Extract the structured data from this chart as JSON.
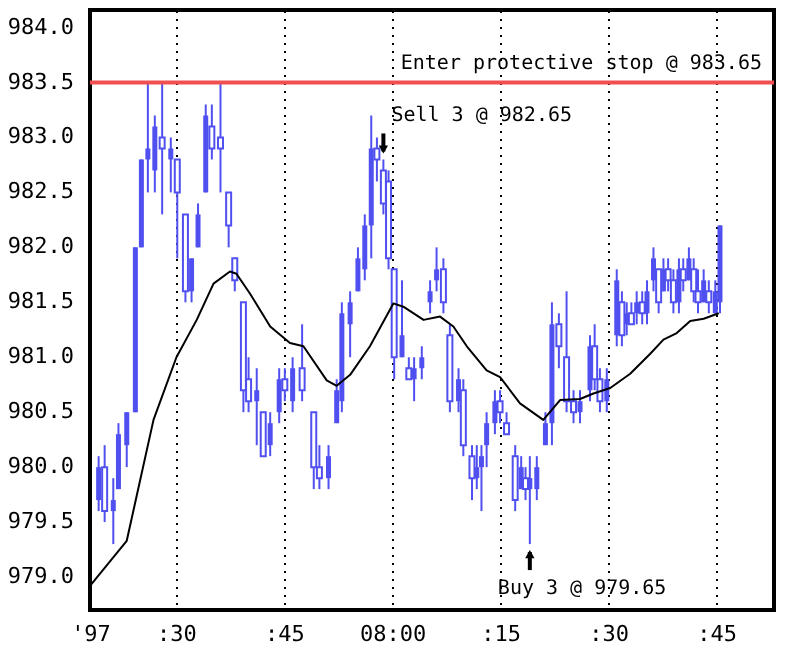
{
  "chart_data": {
    "type": "candlestick",
    "x": [
      "1997-01-01T07:19:16",
      "1997-01-01T07:20:06",
      "1997-01-01T07:21:18",
      "1997-01-01T07:22:01",
      "1997-01-01T07:23:10",
      "1997-01-01T07:24:22",
      "1997-01-01T07:25:12",
      "1997-01-01T07:26:06",
      "1997-01-01T07:27:04",
      "1997-01-01T07:28:05",
      "1997-01-01T07:29:17",
      "1997-01-01T07:30:11",
      "1997-01-01T07:31:19",
      "1997-01-01T07:32:10",
      "1997-01-01T07:33:04",
      "1997-01-01T07:34:08",
      "1997-01-01T07:34:59",
      "1997-01-01T07:36:11",
      "1997-01-01T07:37:19",
      "1997-01-01T07:38:10",
      "1997-01-01T07:39:22",
      "1997-01-01T07:40:05",
      "1997-01-01T07:41:13",
      "1997-01-01T07:42:07",
      "1997-01-01T07:43:05",
      "1997-01-01T07:44:20",
      "1997-01-01T07:45:07",
      "1997-01-01T07:46:12",
      "1997-01-01T07:47:31",
      "1997-01-01T07:49:08",
      "1997-01-01T07:49:55",
      "1997-01-01T07:51:11",
      "1997-01-01T07:52:19",
      "1997-01-01T07:53:02",
      "1997-01-01T07:54:11",
      "1997-01-01T07:55:16",
      "1997-01-01T07:56:13",
      "1997-01-01T07:57:07",
      "1997-01-01T07:57:54",
      "1997-01-01T07:58:48",
      "1997-01-01T07:59:31",
      "1997-01-01T08:00:18",
      "1997-01-01T08:01:23",
      "1997-01-01T08:02:20",
      "1997-01-01T08:03:04",
      "1997-01-01T08:04:08",
      "1997-01-01T08:05:17",
      "1997-01-01T08:06:11",
      "1997-01-01T08:07:08",
      "1997-01-01T08:08:02",
      "1997-01-01T08:09:14",
      "1997-01-01T08:09:54",
      "1997-01-01T08:11:06",
      "1997-01-01T08:11:46",
      "1997-01-01T08:12:25",
      "1997-01-01T08:13:08",
      "1997-01-01T08:14:17",
      "1997-01-01T08:15:00",
      "1997-01-01T08:15:54",
      "1997-01-01T08:17:06",
      "1997-01-01T08:17:56",
      "1997-01-01T08:18:32",
      "1997-01-01T08:19:08",
      "1997-01-01T08:20:06",
      "1997-01-01T08:21:18",
      "1997-01-01T08:22:12",
      "1997-01-01T08:23:10",
      "1997-01-01T08:24:14",
      "1997-01-01T08:25:12",
      "1997-01-01T08:26:06",
      "1997-01-01T08:27:29",
      "1997-01-01T08:28:08",
      "1997-01-01T08:28:52",
      "1997-01-01T08:29:49",
      "1997-01-01T08:31:12",
      "1997-01-01T08:31:55",
      "1997-01-01T08:32:35",
      "1997-01-01T08:33:14",
      "1997-01-01T08:33:58",
      "1997-01-01T08:34:44",
      "1997-01-01T08:35:24",
      "1997-01-01T08:36:18",
      "1997-01-01T08:37:01",
      "1997-01-01T08:37:41",
      "1997-01-01T08:38:20",
      "1997-01-01T08:39:04",
      "1997-01-01T08:39:50",
      "1997-01-01T08:40:26",
      "1997-01-01T08:41:13",
      "1997-01-01T08:41:53",
      "1997-01-01T08:42:29",
      "1997-01-01T08:43:16",
      "1997-01-01T08:43:59",
      "1997-01-01T08:44:53",
      "1997-01-01T08:45:32"
    ],
    "ohlc": [
      [
        979.7,
        980.1,
        979.6,
        980.0
      ],
      [
        980.0,
        980.2,
        979.5,
        979.6
      ],
      [
        979.6,
        979.9,
        979.3,
        979.7
      ],
      [
        979.8,
        980.4,
        979.8,
        980.3
      ],
      [
        980.2,
        980.5,
        980.0,
        980.5
      ],
      [
        980.5,
        982.0,
        980.5,
        982.0
      ],
      [
        982.0,
        982.8,
        982.0,
        982.8
      ],
      [
        982.8,
        983.5,
        982.5,
        982.9
      ],
      [
        982.7,
        983.2,
        982.5,
        983.1
      ],
      [
        983.0,
        983.5,
        982.3,
        982.9
      ],
      [
        982.8,
        983.0,
        982.5,
        982.9
      ],
      [
        982.8,
        982.8,
        981.9,
        982.5
      ],
      [
        982.3,
        982.3,
        981.5,
        981.6
      ],
      [
        981.6,
        981.9,
        981.5,
        981.9
      ],
      [
        982.0,
        982.4,
        982.0,
        982.3
      ],
      [
        982.5,
        983.3,
        982.5,
        983.2
      ],
      [
        983.1,
        983.3,
        982.8,
        982.9
      ],
      [
        983.0,
        983.5,
        982.5,
        982.9
      ],
      [
        982.5,
        982.5,
        982.0,
        982.2
      ],
      [
        981.9,
        981.9,
        981.6,
        981.7
      ],
      [
        981.5,
        981.5,
        980.5,
        980.7
      ],
      [
        980.8,
        981.0,
        980.5,
        980.6
      ],
      [
        980.6,
        980.9,
        980.2,
        980.7
      ],
      [
        980.5,
        980.5,
        980.1,
        980.1
      ],
      [
        980.2,
        980.5,
        980.1,
        980.4
      ],
      [
        980.5,
        980.9,
        980.4,
        980.8
      ],
      [
        980.8,
        980.9,
        980.6,
        980.7
      ],
      [
        980.6,
        981.0,
        980.5,
        980.9
      ],
      [
        980.9,
        981.3,
        980.6,
        980.7
      ],
      [
        980.5,
        980.5,
        979.8,
        980.0
      ],
      [
        980.0,
        980.2,
        979.8,
        979.9
      ],
      [
        979.9,
        980.2,
        979.8,
        980.1
      ],
      [
        980.4,
        980.8,
        980.4,
        980.7
      ],
      [
        980.6,
        981.5,
        980.5,
        981.4
      ],
      [
        981.3,
        981.6,
        981.0,
        981.5
      ],
      [
        981.6,
        982.0,
        981.6,
        981.9
      ],
      [
        981.8,
        982.3,
        981.7,
        982.2
      ],
      [
        982.2,
        983.2,
        981.9,
        982.9
      ],
      [
        982.9,
        983.0,
        982.6,
        982.8
      ],
      [
        982.7,
        982.8,
        982.3,
        982.4
      ],
      [
        982.6,
        982.7,
        981.8,
        981.9
      ],
      [
        981.8,
        981.8,
        980.8,
        981.0
      ],
      [
        981.0,
        981.7,
        981.0,
        981.2
      ],
      [
        980.9,
        981.0,
        980.8,
        980.8
      ],
      [
        980.8,
        981.0,
        980.6,
        980.9
      ],
      [
        980.9,
        981.1,
        980.8,
        981.0
      ],
      [
        981.5,
        981.7,
        981.4,
        981.6
      ],
      [
        981.7,
        982.0,
        981.6,
        981.8
      ],
      [
        981.8,
        981.9,
        981.4,
        981.5
      ],
      [
        981.2,
        981.3,
        980.5,
        980.6
      ],
      [
        980.6,
        980.9,
        980.5,
        980.8
      ],
      [
        980.7,
        980.8,
        980.1,
        980.2
      ],
      [
        980.1,
        980.2,
        979.7,
        979.9
      ],
      [
        979.9,
        980.2,
        979.8,
        980.0
      ],
      [
        980.0,
        980.2,
        979.6,
        980.1
      ],
      [
        980.2,
        980.5,
        980.0,
        980.4
      ],
      [
        980.4,
        980.7,
        980.3,
        980.6
      ],
      [
        980.6,
        980.7,
        980.4,
        980.5
      ],
      [
        980.4,
        980.5,
        980.3,
        980.3
      ],
      [
        980.1,
        980.2,
        979.6,
        979.7
      ],
      [
        979.8,
        980.1,
        979.8,
        980.0
      ],
      [
        979.9,
        980.0,
        979.7,
        979.8
      ],
      [
        979.8,
        980.1,
        979.3,
        979.9
      ],
      [
        979.8,
        980.1,
        979.7,
        980.0
      ],
      [
        980.2,
        980.5,
        980.2,
        980.4
      ],
      [
        980.4,
        981.5,
        980.2,
        981.3
      ],
      [
        981.3,
        981.4,
        980.9,
        981.1
      ],
      [
        981.0,
        981.6,
        980.5,
        980.6
      ],
      [
        980.6,
        980.7,
        980.4,
        980.5
      ],
      [
        980.5,
        980.7,
        980.4,
        980.6
      ],
      [
        980.7,
        981.2,
        980.6,
        981.1
      ],
      [
        981.1,
        981.3,
        980.7,
        980.8
      ],
      [
        980.8,
        980.9,
        980.5,
        980.6
      ],
      [
        980.6,
        980.9,
        980.5,
        980.8
      ],
      [
        981.2,
        981.8,
        981.1,
        981.7
      ],
      [
        981.5,
        981.6,
        981.1,
        981.2
      ],
      [
        981.3,
        981.5,
        981.2,
        981.4
      ],
      [
        981.4,
        981.5,
        981.3,
        981.3
      ],
      [
        981.4,
        981.6,
        981.3,
        981.5
      ],
      [
        981.5,
        981.6,
        981.3,
        981.4
      ],
      [
        981.4,
        981.7,
        981.3,
        981.6
      ],
      [
        981.7,
        982.0,
        981.6,
        981.9
      ],
      [
        981.8,
        981.8,
        981.4,
        981.5
      ],
      [
        981.6,
        981.9,
        981.6,
        981.8
      ],
      [
        981.8,
        981.9,
        981.6,
        981.7
      ],
      [
        981.7,
        981.8,
        981.4,
        981.5
      ],
      [
        981.5,
        981.9,
        981.4,
        981.8
      ],
      [
        981.8,
        981.9,
        981.6,
        981.7
      ],
      [
        981.7,
        982.0,
        981.7,
        981.9
      ],
      [
        981.8,
        981.9,
        981.5,
        981.6
      ],
      [
        981.6,
        981.8,
        981.4,
        981.5
      ],
      [
        981.5,
        981.8,
        981.5,
        981.7
      ],
      [
        981.6,
        981.7,
        981.4,
        981.5
      ],
      [
        981.4,
        981.7,
        981.4,
        981.6
      ],
      [
        981.5,
        982.2,
        981.4,
        982.2
      ]
    ],
    "color": "#5050f0",
    "series": [
      {
        "type": "line",
        "color": "#000000",
        "x": [
          "1997-01-01T07:18:04",
          "1997-01-01T07:23:10",
          "1997-01-01T07:26:53",
          "1997-01-01T07:30:04",
          "1997-01-01T07:32:53",
          "1997-01-01T07:35:13",
          "1997-01-01T07:37:30",
          "1997-01-01T07:38:24",
          "1997-01-01T07:40:16",
          "1997-01-01T07:43:05",
          "1997-01-01T07:45:50",
          "1997-01-01T07:47:42",
          "1997-01-01T07:50:56",
          "1997-01-01T07:52:19",
          "1997-01-01T07:54:11",
          "1997-01-01T07:56:56",
          "1997-01-01T08:00:11",
          "1997-01-01T08:01:34",
          "1997-01-01T08:04:23",
          "1997-01-01T08:06:40",
          "1997-01-01T08:08:31",
          "1997-01-01T08:10:23",
          "1997-01-01T08:13:08",
          "1997-01-01T08:15:00",
          "1997-01-01T08:17:46",
          "1997-01-01T08:21:00",
          "1997-01-01T08:23:20",
          "1997-01-01T08:26:06",
          "1997-01-01T08:27:58",
          "1997-01-01T08:30:18",
          "1997-01-01T08:33:04",
          "1997-01-01T08:35:49",
          "1997-01-01T08:37:41",
          "1997-01-01T08:39:32",
          "1997-01-01T08:41:24",
          "1997-01-01T08:43:16",
          "1997-01-01T08:45:22"
        ],
        "values": [
          978.92,
          979.33,
          980.43,
          981.0,
          981.34,
          981.67,
          981.78,
          981.76,
          981.58,
          981.28,
          981.13,
          981.1,
          980.79,
          980.74,
          980.84,
          981.1,
          981.49,
          981.46,
          981.34,
          981.37,
          981.28,
          981.1,
          980.88,
          980.82,
          980.58,
          980.43,
          980.61,
          980.62,
          980.67,
          980.72,
          980.85,
          981.03,
          981.16,
          981.22,
          981.33,
          981.35,
          981.4
        ]
      }
    ],
    "xlim": [
      "1997-01-01T07:18:04",
      "1997-01-01T08:53:02"
    ],
    "xticks": [
      {
        "value": "1997-01-01T07:18:04",
        "label": "'97"
      },
      {
        "value": "1997-01-01T07:30",
        "label": ":30"
      },
      {
        "value": "1997-01-01T07:45",
        "label": ":45"
      },
      {
        "value": "1997-01-01T08:00",
        "label": "08:00"
      },
      {
        "value": "1997-01-01T08:15",
        "label": ":15"
      },
      {
        "value": "1997-01-01T08:30",
        "label": ":30"
      },
      {
        "value": "1997-01-01T08:45",
        "label": ":45"
      }
    ],
    "ylim": [
      978.7,
      984.16
    ],
    "yticks": [
      {
        "value": 979,
        "label": "979.0"
      },
      {
        "value": 979.5,
        "label": "979.5"
      },
      {
        "value": 980,
        "label": "980.0"
      },
      {
        "value": 980.5,
        "label": "980.5"
      },
      {
        "value": 981,
        "label": "981.0"
      },
      {
        "value": 981.5,
        "label": "981.5"
      },
      {
        "value": 982,
        "label": "982.0"
      },
      {
        "value": 982.5,
        "label": "982.5"
      },
      {
        "value": 983,
        "label": "983.0"
      },
      {
        "value": 983.5,
        "label": "983.5"
      },
      {
        "value": 984,
        "label": "984.0"
      }
    ],
    "grid": "x",
    "ref_lines": [
      {
        "axis": "y",
        "value": 983.5,
        "label": "Enter protective stop @ 983.65",
        "color": "#f05050"
      }
    ],
    "annotations": [
      {
        "text": "Sell 3 @ 982.65",
        "x": "1997-01-01T07:58:48",
        "y": 982.8
      },
      {
        "text": "Buy 3 @ 979.65",
        "x": "1997-01-01T08:19:08",
        "y": 979.3
      }
    ]
  }
}
